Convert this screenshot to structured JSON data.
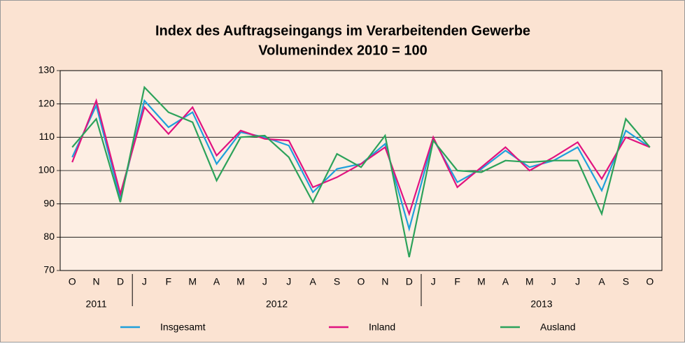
{
  "chart_data": {
    "type": "line",
    "title": "Index des Auftragseingangs im Verarbeitenden Gewerbe",
    "subtitle": "Volumenindex 2010 = 100",
    "categories": [
      "O",
      "N",
      "D",
      "J",
      "F",
      "M",
      "A",
      "M",
      "J",
      "J",
      "A",
      "S",
      "O",
      "N",
      "D",
      "J",
      "F",
      "M",
      "A",
      "M",
      "J",
      "J",
      "A",
      "S",
      "O"
    ],
    "years": [
      "2011",
      "2012",
      "2013"
    ],
    "series": [
      {
        "name": "Insgesamt",
        "color": "#1ea0db",
        "values": [
          104,
          119.5,
          91.5,
          121,
          113,
          117.5,
          102,
          111.5,
          110,
          107.5,
          93.5,
          100.5,
          102,
          108,
          82.5,
          109.5,
          96.5,
          100.5,
          106,
          101,
          103,
          107,
          94,
          112,
          107
        ]
      },
      {
        "name": "Inland",
        "color": "#e0137f",
        "values": [
          102.5,
          121,
          93,
          119,
          111,
          119,
          104.5,
          112,
          109.5,
          109,
          95,
          98,
          102,
          107,
          87,
          110,
          95,
          101,
          107,
          100,
          104,
          108.5,
          97.5,
          110,
          107
        ]
      },
      {
        "name": "Ausland",
        "color": "#2ca25a",
        "values": [
          107,
          115.5,
          90.5,
          125,
          117.5,
          114.5,
          97,
          110,
          110.5,
          104,
          90.5,
          105,
          101,
          110.5,
          74,
          109,
          100,
          99.5,
          103,
          102.5,
          103,
          103,
          87,
          115.5,
          107
        ]
      }
    ],
    "ylim": [
      70,
      130
    ],
    "yticks": [
      70,
      80,
      90,
      100,
      110,
      120,
      130
    ],
    "grid": true
  }
}
